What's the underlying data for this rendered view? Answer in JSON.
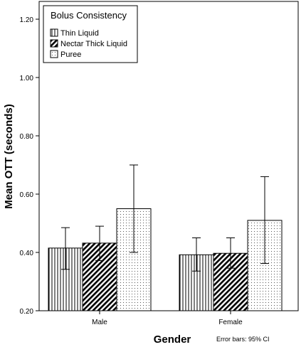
{
  "chart_data": {
    "type": "bar",
    "xlabel": "Gender",
    "ylabel": "Mean OTT (seconds)",
    "ylim": [
      0.2,
      1.2
    ],
    "yticks": [
      "0.20",
      "0.40",
      "0.60",
      "0.80",
      "1.00",
      "1.20"
    ],
    "categories": [
      "Male",
      "Female"
    ],
    "legend_title": "Bolus Consistency",
    "legend_position": "top-left",
    "note": "Error bars: 95% CI",
    "grid": false,
    "series": [
      {
        "name": "Thin Liquid",
        "pattern": "vertical-stripes",
        "values": [
          0.415,
          0.392
        ],
        "ci_low": [
          0.342,
          0.336
        ],
        "ci_high": [
          0.485,
          0.45
        ]
      },
      {
        "name": "Nectar Thick Liquid",
        "pattern": "diagonal-stripes",
        "values": [
          0.432,
          0.397
        ],
        "ci_low": [
          0.372,
          0.346
        ],
        "ci_high": [
          0.49,
          0.45
        ]
      },
      {
        "name": "Puree",
        "pattern": "dots",
        "values": [
          0.55,
          0.51
        ],
        "ci_low": [
          0.4,
          0.362
        ],
        "ci_high": [
          0.7,
          0.66
        ]
      }
    ]
  }
}
